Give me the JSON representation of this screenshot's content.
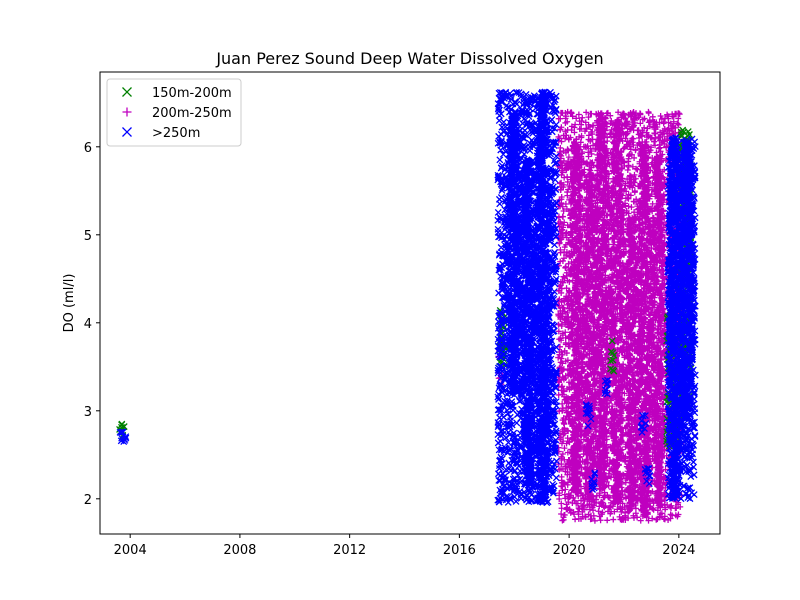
{
  "chart_data": {
    "type": "scatter",
    "title": "Juan Perez Sound Deep Water Dissolved Oxygen",
    "xlabel": "",
    "ylabel": "DO (ml/l)",
    "xlim": [
      2002.9,
      2025.5
    ],
    "ylim": [
      1.6,
      6.85
    ],
    "x_ticks": [
      {
        "value": 2004,
        "label": "2004"
      },
      {
        "value": 2008,
        "label": "2008"
      },
      {
        "value": 2012,
        "label": "2012"
      },
      {
        "value": 2016,
        "label": "2016"
      },
      {
        "value": 2020,
        "label": "2020"
      },
      {
        "value": 2024,
        "label": "2024"
      }
    ],
    "y_ticks": [
      {
        "value": 2,
        "label": "2"
      },
      {
        "value": 3,
        "label": "3"
      },
      {
        "value": 4,
        "label": "4"
      },
      {
        "value": 5,
        "label": "5"
      },
      {
        "value": 6,
        "label": "6"
      }
    ],
    "grid": false,
    "legend_position": "top-left",
    "series": [
      {
        "name": "150m-200m",
        "marker": "x",
        "color": "#008000",
        "segments": [
          {
            "x_start": 2003.6,
            "x_end": 2003.85,
            "y_min": 2.7,
            "y_max": 2.88
          },
          {
            "x_start": 2017.45,
            "x_end": 2017.7,
            "y_min": 3.5,
            "y_max": 4.15
          },
          {
            "x_start": 2021.5,
            "x_end": 2021.65,
            "y_min": 3.4,
            "y_max": 3.8
          },
          {
            "x_start": 2023.55,
            "x_end": 2023.95,
            "y_min": 2.6,
            "y_max": 4.1
          },
          {
            "x_start": 2024.0,
            "x_end": 2024.45,
            "y_min": 2.9,
            "y_max": 6.2
          }
        ]
      },
      {
        "name": "200m-250m",
        "marker": "+",
        "color": "#bf00bf",
        "segments": [
          {
            "x_start": 2017.4,
            "x_end": 2017.6,
            "y_min": 3.3,
            "y_max": 3.9
          },
          {
            "x_start": 2019.6,
            "x_end": 2024.1,
            "y_min": 1.75,
            "y_max": 6.4
          }
        ],
        "outliers": [
          {
            "x": 2023.1,
            "y": 6.22
          },
          {
            "x": 2023.5,
            "y": 1.9
          },
          {
            "x": 2023.9,
            "y": 2.55
          }
        ]
      },
      {
        "name": ">250m",
        "marker": "x",
        "color": "#0000ff",
        "segments": [
          {
            "x_start": 2003.6,
            "x_end": 2003.85,
            "y_min": 2.62,
            "y_max": 2.8
          },
          {
            "x_start": 2017.4,
            "x_end": 2019.55,
            "y_min": 1.95,
            "y_max": 6.62
          },
          {
            "x_start": 2020.6,
            "x_end": 2020.8,
            "y_min": 2.8,
            "y_max": 3.1
          },
          {
            "x_start": 2020.8,
            "x_end": 2020.95,
            "y_min": 2.1,
            "y_max": 2.3
          },
          {
            "x_start": 2021.3,
            "x_end": 2021.45,
            "y_min": 3.15,
            "y_max": 3.35
          },
          {
            "x_start": 2022.6,
            "x_end": 2022.8,
            "y_min": 2.75,
            "y_max": 2.95
          },
          {
            "x_start": 2022.75,
            "x_end": 2022.95,
            "y_min": 2.15,
            "y_max": 2.35
          },
          {
            "x_start": 2023.6,
            "x_end": 2024.6,
            "y_min": 2.0,
            "y_max": 6.1
          }
        ]
      }
    ],
    "peaks": [
      {
        "series": ">250m",
        "x": 2018.0,
        "y_low": 3.2,
        "y_high": 6.38
      },
      {
        "series": ">250m",
        "x": 2018.5,
        "y_low": 2.15,
        "y_high": 5.85
      },
      {
        "series": ">250m",
        "x": 2019.05,
        "y_low": 1.95,
        "y_high": 6.62
      },
      {
        "series": "200m-250m",
        "x": 2020.25,
        "y_low": 2.05,
        "y_high": 6.05
      },
      {
        "series": "200m-250m",
        "x": 2020.75,
        "y_low": 2.0,
        "y_high": 5.7
      },
      {
        "series": "200m-250m",
        "x": 2021.2,
        "y_low": 2.1,
        "y_high": 6.38
      },
      {
        "series": "200m-250m",
        "x": 2021.75,
        "y_low": 1.95,
        "y_high": 6.3
      },
      {
        "series": "200m-250m",
        "x": 2022.3,
        "y_low": 1.9,
        "y_high": 5.2
      },
      {
        "series": "200m-250m",
        "x": 2022.75,
        "y_low": 1.8,
        "y_high": 6.0
      },
      {
        "series": "200m-250m",
        "x": 2023.25,
        "y_low": 1.95,
        "y_high": 5.9
      },
      {
        "series": ">250m",
        "x": 2023.85,
        "y_low": 2.0,
        "y_high": 6.1
      },
      {
        "series": ">250m",
        "x": 2024.3,
        "y_low": 2.9,
        "y_high": 6.05
      }
    ]
  }
}
